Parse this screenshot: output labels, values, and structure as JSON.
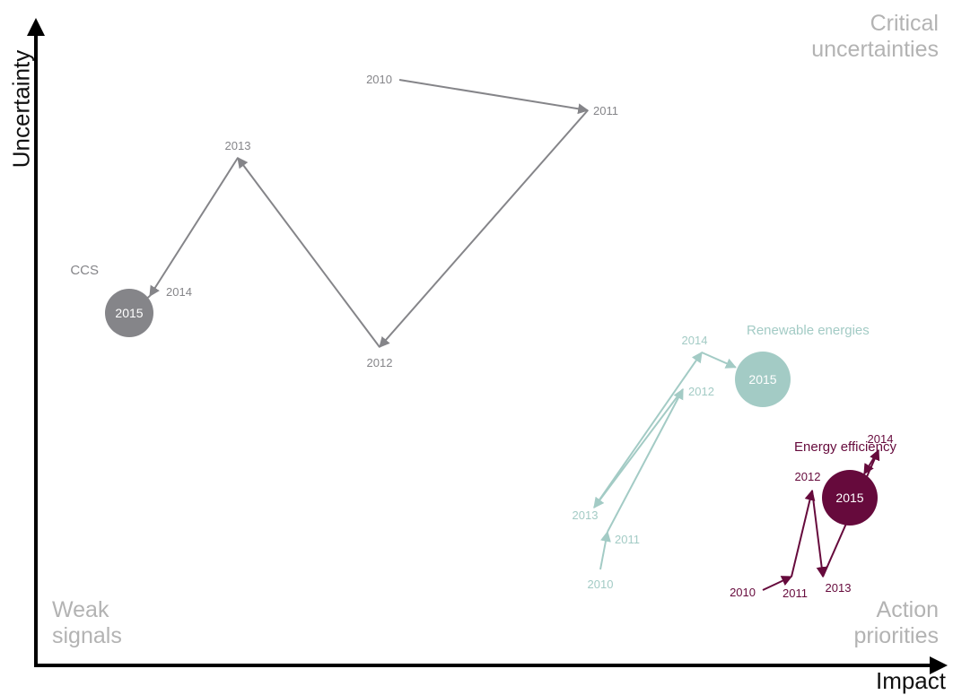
{
  "chart_data": {
    "type": "scatter",
    "title": "",
    "xlabel": "Impact",
    "ylabel": "Uncertainty",
    "quadrants": {
      "top_right": [
        "Critical",
        "uncertainties"
      ],
      "bottom_left": [
        "Weak",
        "signals"
      ],
      "bottom_right": [
        "Action",
        "priorities"
      ]
    },
    "grid": false,
    "series": [
      {
        "name": "CCS",
        "color": "#858589",
        "points": [
          {
            "year": "2010",
            "x": 445,
            "y": 89
          },
          {
            "year": "2011",
            "x": 655,
            "y": 123
          },
          {
            "year": "2012",
            "x": 423,
            "y": 387
          },
          {
            "year": "2013",
            "x": 265,
            "y": 176
          },
          {
            "year": "2014",
            "x": 167,
            "y": 330
          },
          {
            "year": "2015",
            "x": 144,
            "y": 349
          }
        ]
      },
      {
        "name": "Renewable energies",
        "color": "#a3cbc5",
        "points": [
          {
            "year": "2010",
            "x": 669,
            "y": 635
          },
          {
            "year": "2011",
            "x": 677,
            "y": 593
          },
          {
            "year": "2012",
            "x": 761,
            "y": 434
          },
          {
            "year": "2013",
            "x": 662,
            "y": 566
          },
          {
            "year": "2014",
            "x": 782,
            "y": 393
          },
          {
            "year": "2015",
            "x": 850,
            "y": 423
          }
        ]
      },
      {
        "name": "Energy efficiency",
        "color": "#660a3c",
        "points": [
          {
            "year": "2010",
            "x": 850,
            "y": 658
          },
          {
            "year": "2011",
            "x": 882,
            "y": 643
          },
          {
            "year": "2012",
            "x": 905,
            "y": 547
          },
          {
            "year": "2013",
            "x": 917,
            "y": 643
          },
          {
            "year": "2014",
            "x": 979,
            "y": 502
          },
          {
            "year": "2015",
            "x": 947,
            "y": 555
          }
        ]
      }
    ]
  }
}
